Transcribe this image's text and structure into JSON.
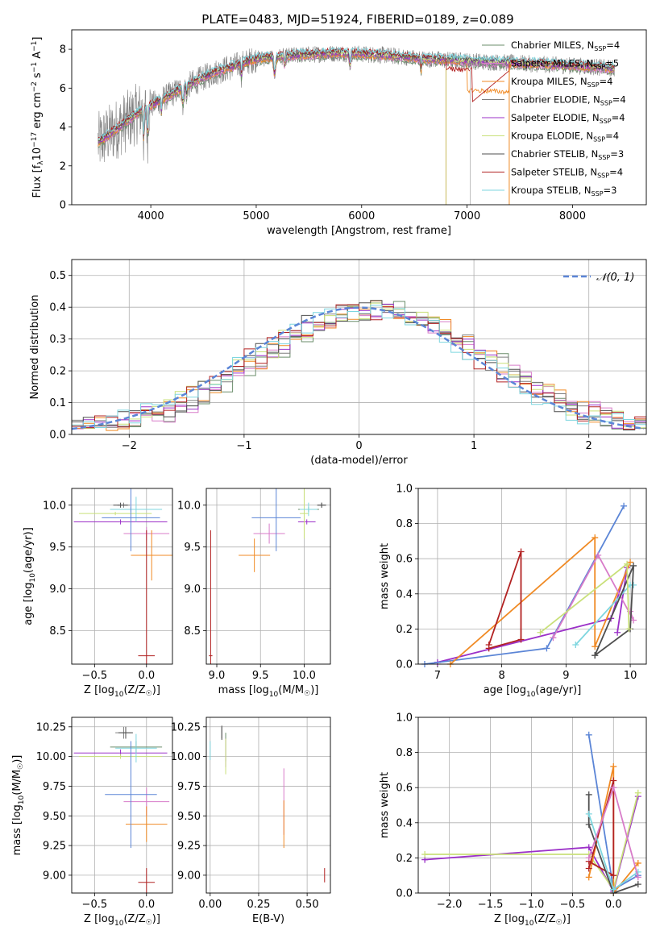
{
  "figure": {
    "title": "PLATE=0483, MJD=51924, FIBERID=0189, z=0.089"
  },
  "colors": [
    "#6b8e6b",
    "#d87cc9",
    "#f08a24",
    "#7f7f7f",
    "#9b30c8",
    "#c9e07a",
    "#4f4f4f",
    "#b22222",
    "#7ed6df",
    "#5b85d6"
  ],
  "chart_data": [
    {
      "id": "spectrum",
      "type": "line",
      "xlabel": "wavelength [Angstrom, rest frame]",
      "ylabel": "Flux [f_λ10^-17 erg cm^-2 s^-1 A^-1]",
      "xlim": [
        3250,
        8700
      ],
      "ylim": [
        0,
        9
      ],
      "xticks": [
        4000,
        5000,
        6000,
        7000,
        8000
      ],
      "yticks": [
        0,
        2,
        4,
        6,
        8
      ],
      "legend_position": "upper right",
      "legend": [
        {
          "label": "Chabrier MILES, N",
          "sub": "SSP",
          "suffix": "=4",
          "color": "#6b8e6b"
        },
        {
          "label": "Salpeter MILES, N",
          "sub": "SSP",
          "suffix": "=5",
          "color": "#d87cc9"
        },
        {
          "label": "Kroupa MILES, N",
          "sub": "SSP",
          "suffix": "=4",
          "color": "#f08a24"
        },
        {
          "label": "Chabrier ELODIE, N",
          "sub": "SSP",
          "suffix": "=4",
          "color": "#7f7f7f"
        },
        {
          "label": "Salpeter ELODIE, N",
          "sub": "SSP",
          "suffix": "=4",
          "color": "#9b30c8"
        },
        {
          "label": "Kroupa ELODIE, N",
          "sub": "SSP",
          "suffix": "=4",
          "color": "#c9e07a"
        },
        {
          "label": "Chabrier STELIB, N",
          "sub": "SSP",
          "suffix": "=3",
          "color": "#4f4f4f"
        },
        {
          "label": "Salpeter STELIB, N",
          "sub": "SSP",
          "suffix": "=4",
          "color": "#b22222"
        },
        {
          "label": "Kroupa STELIB, N",
          "sub": "SSP",
          "suffix": "=3",
          "color": "#7ed6df"
        }
      ],
      "continuum": {
        "x": [
          3500,
          3700,
          3900,
          4100,
          4300,
          4600,
          5000,
          5400,
          5800,
          6200,
          6600,
          7000,
          7400,
          7800,
          8200,
          8400
        ],
        "y": [
          3.2,
          4.0,
          4.8,
          5.4,
          6.0,
          6.8,
          7.5,
          7.7,
          7.8,
          7.7,
          7.5,
          7.4,
          7.3,
          7.2,
          7.1,
          7.0
        ]
      }
    },
    {
      "id": "residuals",
      "type": "line",
      "xlabel": "(data-model)/error",
      "ylabel": "Normed distribution",
      "xlim": [
        -2.5,
        2.5
      ],
      "ylim": [
        0,
        0.55
      ],
      "xticks": [
        -2,
        -1,
        0,
        1,
        2
      ],
      "yticks": [
        0.0,
        0.1,
        0.2,
        0.3,
        0.4,
        0.5
      ],
      "legend": [
        {
          "label": "𝒩(0, 1)",
          "color": "#5b85d6"
        }
      ],
      "gaussian": {
        "mean": 0,
        "sigma": 1
      }
    },
    {
      "id": "age-vs-Z",
      "type": "scatter",
      "xlabel": "Z [log10(Z/Z☉)]",
      "ylabel": "age [log10(age/yr)]",
      "xlim": [
        -0.72,
        0.25
      ],
      "ylim": [
        8.1,
        10.2
      ],
      "xticks": [
        -0.5,
        0.0
      ],
      "yticks": [
        8.5,
        9.0,
        9.5,
        10.0
      ],
      "points": [
        {
          "x": -0.15,
          "y": 9.95,
          "xerr": 0.2,
          "yerr": 0.03,
          "color": "#6b8e6b"
        },
        {
          "x": -0.0,
          "y": 9.66,
          "xerr": 0.22,
          "yerr": 0.08,
          "color": "#d87cc9"
        },
        {
          "x": 0.05,
          "y": 9.4,
          "xerr": 0.2,
          "yerr": 0.3,
          "color": "#f08a24"
        },
        {
          "x": -0.22,
          "y": 10.0,
          "xerr": 0.06,
          "yerr": 0.03,
          "color": "#7f7f7f"
        },
        {
          "x": -0.25,
          "y": 9.8,
          "xerr": 0.45,
          "yerr": 0.03,
          "color": "#9b30c8"
        },
        {
          "x": -0.3,
          "y": 9.9,
          "xerr": 0.35,
          "yerr": 0.02,
          "color": "#c9e07a"
        },
        {
          "x": -0.25,
          "y": 10.0,
          "xerr": 0.07,
          "yerr": 0.03,
          "color": "#4f4f4f"
        },
        {
          "x": 0.0,
          "y": 8.2,
          "xerr": 0.08,
          "yerr": 1.5,
          "color": "#b22222"
        },
        {
          "x": -0.1,
          "y": 9.95,
          "xerr": 0.25,
          "yerr": 0.15,
          "color": "#7ed6df"
        },
        {
          "x": -0.15,
          "y": 9.85,
          "xerr": 0.28,
          "yerr": 0.4,
          "color": "#5b85d6"
        }
      ]
    },
    {
      "id": "age-vs-mass",
      "type": "scatter",
      "xlabel": "mass [log10(M/M☉)]",
      "ylabel": "",
      "xlim": [
        8.88,
        10.3
      ],
      "ylim": [
        8.1,
        10.2
      ],
      "xticks": [
        9.0,
        9.5,
        10.0
      ],
      "yticks": [
        8.5,
        9.0,
        9.5,
        10.0
      ],
      "points": [
        {
          "x": 10.05,
          "y": 9.95,
          "xerr": 0.12,
          "yerr": 0.03,
          "color": "#6b8e6b"
        },
        {
          "x": 9.6,
          "y": 9.66,
          "xerr": 0.18,
          "yerr": 0.12,
          "color": "#d87cc9"
        },
        {
          "x": 9.43,
          "y": 9.4,
          "xerr": 0.18,
          "yerr": 0.2,
          "color": "#f08a24"
        },
        {
          "x": 10.2,
          "y": 10.0,
          "xerr": 0.05,
          "yerr": 0.03,
          "color": "#7f7f7f"
        },
        {
          "x": 10.03,
          "y": 9.8,
          "xerr": 0.1,
          "yerr": 0.03,
          "color": "#9b30c8"
        },
        {
          "x": 10.0,
          "y": 9.9,
          "xerr": 0.05,
          "yerr": 0.3,
          "color": "#c9e07a"
        },
        {
          "x": 10.2,
          "y": 10.0,
          "xerr": 0.05,
          "yerr": 0.03,
          "color": "#4f4f4f"
        },
        {
          "x": 8.93,
          "y": 8.2,
          "xerr": 0.02,
          "yerr": 1.5,
          "color": "#b22222"
        },
        {
          "x": 10.05,
          "y": 9.95,
          "xerr": 0.1,
          "yerr": 0.08,
          "color": "#7ed6df"
        },
        {
          "x": 9.68,
          "y": 9.85,
          "xerr": 0.28,
          "yerr": 0.4,
          "color": "#5b85d6"
        }
      ]
    },
    {
      "id": "massweight-vs-age",
      "type": "line",
      "xlabel": "age [log10(age/yr)]",
      "ylabel": "mass weight",
      "xlim": [
        6.7,
        10.25
      ],
      "ylim": [
        0,
        1.0
      ],
      "xticks": [
        7,
        8,
        9,
        10
      ],
      "yticks": [
        0.0,
        0.2,
        0.4,
        0.6,
        0.8,
        1.0
      ],
      "series": [
        {
          "color": "#9b30c8",
          "x": [
            7.0,
            9.7,
            9.95,
            9.8
          ],
          "y": [
            0.01,
            0.26,
            0.55,
            0.18
          ]
        },
        {
          "color": "#5b85d6",
          "x": [
            6.8,
            8.7,
            9.9
          ],
          "y": [
            0.0,
            0.09,
            0.9
          ]
        },
        {
          "color": "#f08a24",
          "x": [
            7.2,
            9.45,
            9.45,
            10.0
          ],
          "y": [
            0.0,
            0.72,
            0.1,
            0.58
          ]
        },
        {
          "color": "#b22222",
          "x": [
            7.8,
            8.3,
            8.3,
            7.8
          ],
          "y": [
            0.11,
            0.64,
            0.14,
            0.09
          ]
        },
        {
          "color": "#d87cc9",
          "x": [
            8.8,
            9.5,
            10.05,
            10.0
          ],
          "y": [
            0.15,
            0.62,
            0.25,
            0.3
          ]
        },
        {
          "color": "#7ed6df",
          "x": [
            9.15,
            10.0,
            10.05
          ],
          "y": [
            0.11,
            0.45,
            0.45
          ]
        },
        {
          "color": "#4f4f4f",
          "x": [
            9.45,
            10.05,
            10.0,
            9.45
          ],
          "y": [
            0.05,
            0.56,
            0.2,
            0.05
          ]
        },
        {
          "color": "#c9e07a",
          "x": [
            8.6,
            9.95,
            9.98
          ],
          "y": [
            0.18,
            0.57,
            0.2
          ]
        }
      ]
    },
    {
      "id": "mass-vs-Z",
      "type": "scatter",
      "xlabel": "Z [log10(Z/Z☉)]",
      "ylabel": "mass [log10(M/M☉)]",
      "xlim": [
        -0.72,
        0.25
      ],
      "ylim": [
        8.85,
        10.33
      ],
      "xticks": [
        -0.5,
        0.0
      ],
      "yticks": [
        9.0,
        9.25,
        9.5,
        9.75,
        10.0,
        10.25
      ],
      "points": [
        {
          "x": -0.1,
          "y": 10.08,
          "xerr": 0.25,
          "yerr": 0.05,
          "color": "#6b8e6b"
        },
        {
          "x": 0.0,
          "y": 9.62,
          "xerr": 0.22,
          "yerr": 0.12,
          "color": "#d87cc9"
        },
        {
          "x": 0.0,
          "y": 9.43,
          "xerr": 0.2,
          "yerr": 0.15,
          "color": "#f08a24"
        },
        {
          "x": -0.22,
          "y": 10.2,
          "xerr": 0.08,
          "yerr": 0.05,
          "color": "#7f7f7f"
        },
        {
          "x": -0.25,
          "y": 10.03,
          "xerr": 0.45,
          "yerr": 0.03,
          "color": "#9b30c8"
        },
        {
          "x": -0.25,
          "y": 10.0,
          "xerr": 0.4,
          "yerr": 0.02,
          "color": "#c9e07a"
        },
        {
          "x": -0.2,
          "y": 10.2,
          "xerr": 0.07,
          "yerr": 0.05,
          "color": "#4f4f4f"
        },
        {
          "x": 0.0,
          "y": 8.94,
          "xerr": 0.08,
          "yerr": 0.12,
          "color": "#b22222"
        },
        {
          "x": -0.1,
          "y": 10.07,
          "xerr": 0.2,
          "yerr": 0.12,
          "color": "#7ed6df"
        },
        {
          "x": -0.15,
          "y": 9.68,
          "xerr": 0.25,
          "yerr": 0.45,
          "color": "#5b85d6"
        }
      ]
    },
    {
      "id": "mass-vs-ebv",
      "type": "scatter",
      "xlabel": "E(B-V)",
      "ylabel": "",
      "xlim": [
        -0.02,
        0.62
      ],
      "ylim": [
        8.85,
        10.33
      ],
      "xticks": [
        0.0,
        0.25,
        0.5
      ],
      "yticks": [
        9.0,
        9.25,
        9.5,
        9.75,
        10.0,
        10.25
      ],
      "points": [
        {
          "x": 0.08,
          "y": 10.08,
          "xerr": 0.0,
          "yerr": 0.12,
          "color": "#6b8e6b"
        },
        {
          "x": 0.38,
          "y": 9.62,
          "xerr": 0.0,
          "yerr": 0.28,
          "color": "#d87cc9"
        },
        {
          "x": 0.38,
          "y": 9.43,
          "xerr": 0.0,
          "yerr": 0.2,
          "color": "#f08a24"
        },
        {
          "x": 0.06,
          "y": 10.2,
          "xerr": 0.0,
          "yerr": 0.05,
          "color": "#7f7f7f"
        },
        {
          "x": 0.08,
          "y": 10.03,
          "xerr": 0.0,
          "yerr": 0.12,
          "color": "#9b30c8"
        },
        {
          "x": 0.08,
          "y": 10.0,
          "xerr": 0.0,
          "yerr": 0.15,
          "color": "#c9e07a"
        },
        {
          "x": 0.06,
          "y": 10.2,
          "xerr": 0.0,
          "yerr": 0.06,
          "color": "#4f4f4f"
        },
        {
          "x": 0.59,
          "y": 9.0,
          "xerr": 0.0,
          "yerr": 0.06,
          "color": "#b22222"
        },
        {
          "x": 0.0,
          "y": 10.05,
          "xerr": 0.0,
          "yerr": 0.08,
          "color": "#7ed6df"
        }
      ]
    },
    {
      "id": "massweight-vs-Z",
      "type": "line",
      "xlabel": "Z [log10(Z/Z☉)]",
      "ylabel": "mass weight",
      "xlim": [
        -2.38,
        0.4
      ],
      "ylim": [
        0,
        1.0
      ],
      "xticks": [
        -2.0,
        -1.5,
        -1.0,
        -0.5,
        0.0
      ],
      "yticks": [
        0.0,
        0.2,
        0.4,
        0.6,
        0.8,
        1.0
      ],
      "series": [
        {
          "color": "#9b30c8",
          "x": [
            -2.3,
            -0.3,
            0.0,
            0.3
          ],
          "y": [
            0.19,
            0.26,
            0.01,
            0.55
          ]
        },
        {
          "color": "#c9e07a",
          "x": [
            -2.3,
            -0.3,
            0.0,
            0.3
          ],
          "y": [
            0.22,
            0.22,
            0.02,
            0.57
          ]
        },
        {
          "color": "#5b85d6",
          "x": [
            -0.3,
            0.0,
            0.3
          ],
          "y": [
            0.9,
            0.02,
            0.1
          ]
        },
        {
          "color": "#f08a24",
          "x": [
            -0.3,
            0.0,
            0.0,
            0.3
          ],
          "y": [
            0.09,
            0.72,
            0.0,
            0.17
          ]
        },
        {
          "color": "#b22222",
          "x": [
            -0.3,
            0.0,
            0.0,
            -0.3
          ],
          "y": [
            0.14,
            0.64,
            0.1,
            0.18
          ]
        },
        {
          "color": "#4f4f4f",
          "x": [
            -0.3,
            -0.3,
            0.0,
            0.3
          ],
          "y": [
            0.56,
            0.39,
            0.0,
            0.05
          ]
        },
        {
          "color": "#7ed6df",
          "x": [
            -0.3,
            0.0,
            0.3
          ],
          "y": [
            0.45,
            0.02,
            0.12
          ]
        },
        {
          "color": "#d87cc9",
          "x": [
            -0.3,
            0.0,
            0.3
          ],
          "y": [
            0.2,
            0.6,
            0.09
          ]
        }
      ]
    }
  ]
}
